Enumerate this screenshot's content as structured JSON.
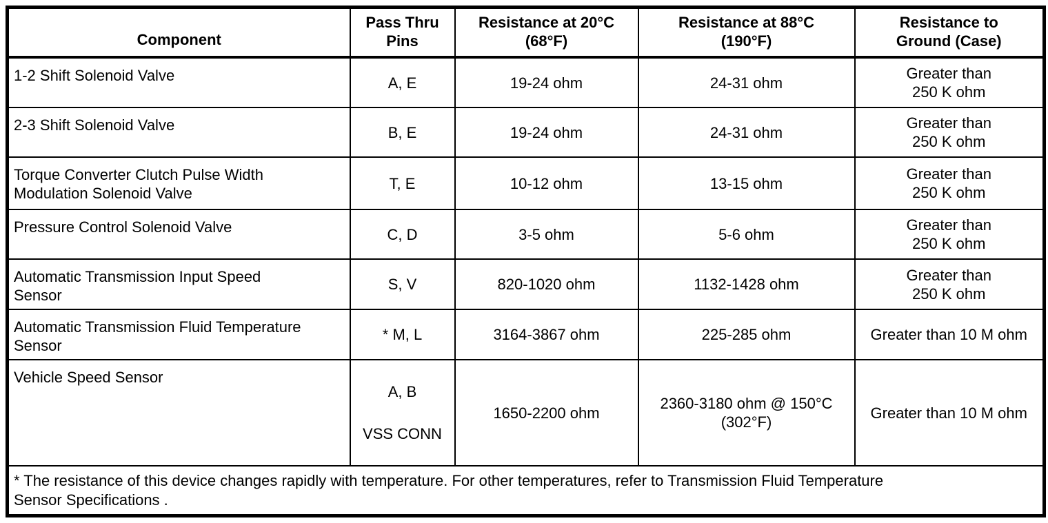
{
  "table": {
    "headers": [
      "Component",
      "Pass Thru\nPins",
      "Resistance at 20°C\n(68°F)",
      "Resistance at 88°C\n(190°F)",
      "Resistance to\nGround (Case)"
    ],
    "rows": [
      {
        "component": "1-2 Shift Solenoid Valve",
        "pins": "A, E",
        "r20": "19-24 ohm",
        "r88": "24-31 ohm",
        "ground": "Greater than\n250 K ohm"
      },
      {
        "component": "2-3 Shift Solenoid Valve",
        "pins": "B, E",
        "r20": "19-24 ohm",
        "r88": "24-31 ohm",
        "ground": "Greater than\n250 K ohm"
      },
      {
        "component": "Torque Converter Clutch Pulse Width\nModulation Solenoid Valve",
        "pins": "T, E",
        "r20": "10-12 ohm",
        "r88": "13-15 ohm",
        "ground": "Greater than\n250 K ohm"
      },
      {
        "component": "Pressure Control Solenoid Valve",
        "pins": "C, D",
        "r20": "3-5 ohm",
        "r88": "5-6 ohm",
        "ground": "Greater than\n250 K ohm"
      },
      {
        "component": "Automatic Transmission Input Speed\nSensor",
        "pins": "S, V",
        "r20": "820-1020 ohm",
        "r88": "1132-1428 ohm",
        "ground": "Greater than\n250 K ohm"
      },
      {
        "component": "Automatic Transmission Fluid Temperature\nSensor",
        "pins": "* M, L",
        "r20": "3164-3867 ohm",
        "r88": "225-285 ohm",
        "ground": "Greater than 10 M ohm"
      },
      {
        "component": "Vehicle Speed Sensor",
        "pins": "A, B",
        "pins_secondary": "VSS CONN",
        "r20": "1650-2200 ohm",
        "r88": "2360-3180 ohm @ 150°C\n(302°F)",
        "ground": "Greater than 10 M ohm"
      }
    ],
    "footnote": "* The resistance of this device changes rapidly with temperature. For other temperatures, refer to Transmission Fluid Temperature\nSensor Specifications ."
  },
  "colors": {
    "border": "#000000",
    "text": "#000000",
    "background": "#ffffff"
  }
}
